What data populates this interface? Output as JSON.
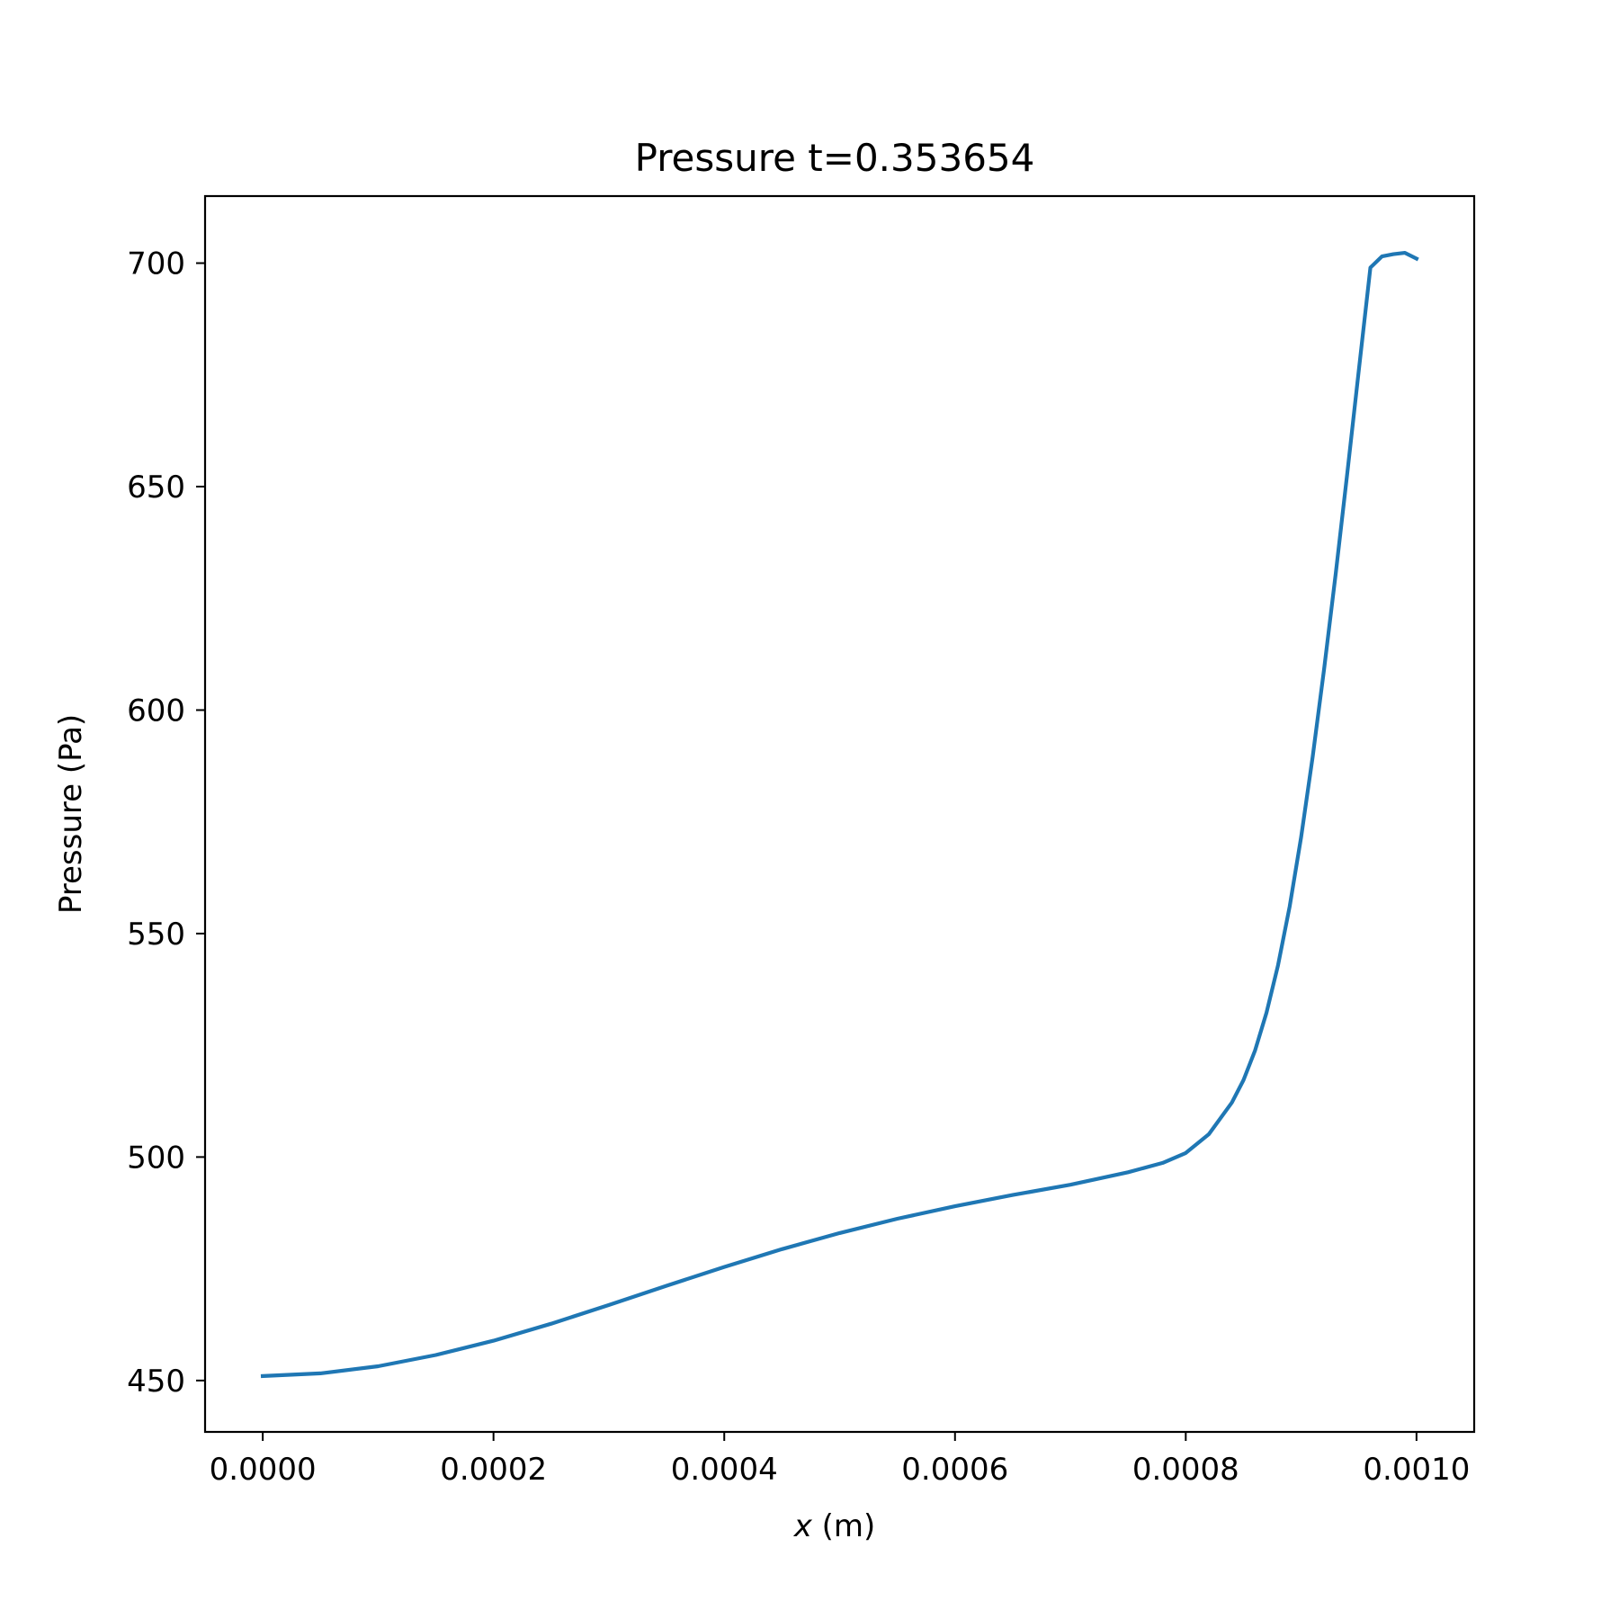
{
  "chart_data": {
    "type": "line",
    "title": "Pressure t=0.353654",
    "xlabel": {
      "var": "x",
      "unit": " (m)"
    },
    "ylabel": "Pressure (Pa)",
    "xlim": [
      -5e-05,
      0.00105
    ],
    "ylim": [
      438.5,
      715
    ],
    "grid": false,
    "x_ticks": [
      {
        "value": 0.0,
        "label": "0.0000"
      },
      {
        "value": 0.0002,
        "label": "0.0002"
      },
      {
        "value": 0.0004,
        "label": "0.0004"
      },
      {
        "value": 0.0006,
        "label": "0.0006"
      },
      {
        "value": 0.0008,
        "label": "0.0008"
      },
      {
        "value": 0.001,
        "label": "0.0010"
      }
    ],
    "y_ticks": [
      {
        "value": 450,
        "label": "450"
      },
      {
        "value": 500,
        "label": "500"
      },
      {
        "value": 550,
        "label": "550"
      },
      {
        "value": 600,
        "label": "600"
      },
      {
        "value": 650,
        "label": "650"
      },
      {
        "value": 700,
        "label": "700"
      }
    ],
    "series": [
      {
        "color": "#1f77b4",
        "x": [
          0.0,
          5e-05,
          0.0001,
          0.00015,
          0.0002,
          0.00025,
          0.0003,
          0.00035,
          0.0004,
          0.00045,
          0.0005,
          0.00055,
          0.0006,
          0.00065,
          0.0007,
          0.00075,
          0.00078,
          0.0008,
          0.00082,
          0.00084,
          0.00085,
          0.00086,
          0.00087,
          0.00088,
          0.00089,
          0.0009,
          0.00091,
          0.00092,
          0.00093,
          0.00094,
          0.00095,
          0.00096,
          0.00097,
          0.00098,
          0.00099,
          0.001
        ],
        "y": [
          451,
          451.6,
          453.2,
          455.7,
          458.9,
          462.7,
          466.9,
          471.2,
          475.4,
          479.4,
          483.0,
          486.2,
          489.0,
          491.5,
          493.8,
          496.6,
          498.7,
          500.9,
          505.1,
          512.2,
          517.2,
          523.8,
          532.3,
          542.9,
          556.0,
          571.6,
          589.5,
          609.3,
          630.6,
          653.0,
          676.0,
          699.0,
          701.5,
          702.0,
          702.3,
          701.0
        ]
      }
    ]
  }
}
